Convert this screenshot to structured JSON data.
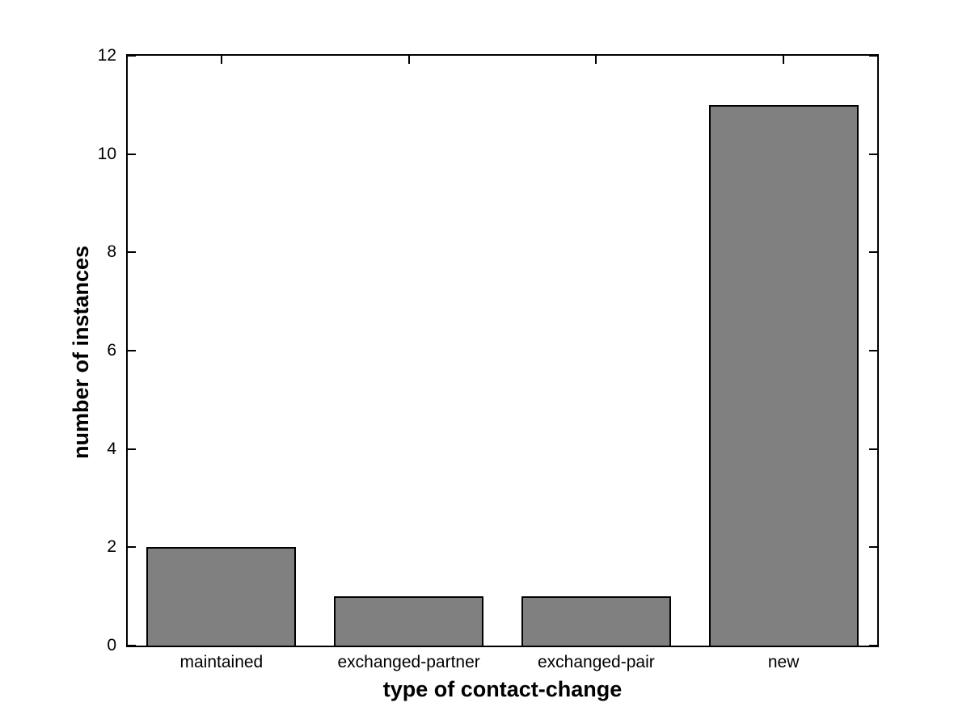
{
  "figure": {
    "background": "#ffffff"
  },
  "chart_data": {
    "type": "bar",
    "categories": [
      "maintained",
      "exchanged-partner",
      "exchanged-pair",
      "new"
    ],
    "values": [
      2,
      1,
      1,
      11
    ],
    "xlabel": "type of contact-change",
    "ylabel": "number of instances",
    "ylim": [
      0,
      12
    ],
    "yticks": [
      0,
      2,
      4,
      6,
      8,
      10,
      12
    ],
    "bar_width_fraction": 0.8,
    "bar_color": "#808080",
    "bar_edge_color": "#000000",
    "axis_color": "#000000",
    "tick_length": 10,
    "grid": false,
    "legend": null,
    "box": true,
    "tick_direction": "in"
  }
}
